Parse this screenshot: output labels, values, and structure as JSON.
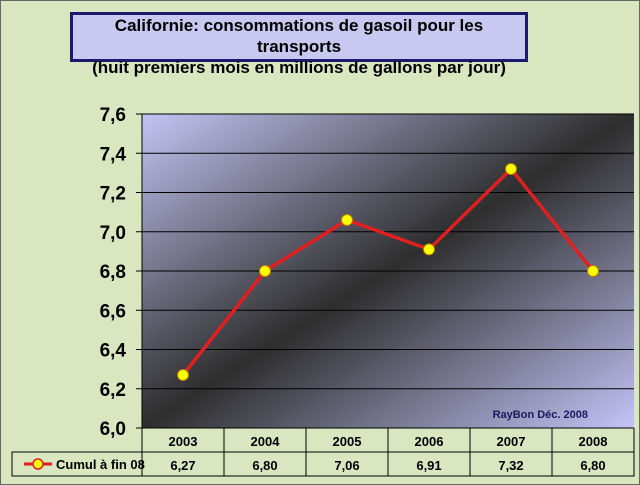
{
  "chart_data": {
    "type": "line",
    "title": "Californie: consommations de gasoil pour les transports",
    "subtitle": "(huit premiers mois en millions de gallons par jour)",
    "categories": [
      "2003",
      "2004",
      "2005",
      "2006",
      "2007",
      "2008"
    ],
    "series": [
      {
        "name": "Cumul à fin 08",
        "values": [
          6.27,
          6.8,
          7.06,
          6.91,
          7.32,
          6.8
        ],
        "labels": [
          "6,27",
          "6,80",
          "7,06",
          "6,91",
          "7,32",
          "6,80"
        ],
        "color": "#e02020",
        "marker_color": "#ffff00"
      }
    ],
    "ylim": [
      6.0,
      7.6
    ],
    "yticks": [
      "6,0",
      "6,2",
      "6,4",
      "6,6",
      "6,8",
      "7,0",
      "7,2",
      "7,4",
      "7,6"
    ],
    "grid": true,
    "annotation": "RayBon Déc. 2008",
    "legend": "data-table"
  }
}
